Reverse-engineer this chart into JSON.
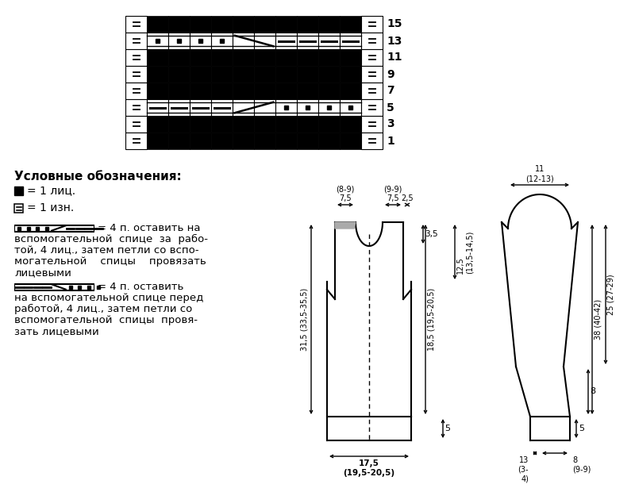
{
  "bg_color": "#ffffff",
  "grid_rows": 8,
  "grid_cols": 12,
  "row_numbers": [
    1,
    3,
    5,
    7,
    9,
    11,
    13,
    15
  ],
  "legend_title": "Условные обозначения:",
  "leg1": "■ = 1 лиц.",
  "leg2": "⊞ = 1 изн.",
  "leg3a": "= 4 п. оставить на",
  "leg3b": [
    "вспомогательной  спице  за  рабо-",
    "той, 4 лиц., затем петли со вспо-",
    "могательной    спицы    провязать",
    "лицевыми"
  ],
  "leg4a": "= 4 п. оставить",
  "leg4b": [
    "на вспомогательной спице перед",
    "работой, 4 лиц., затем петли со",
    "вспомогательной  спицы  провя-",
    "зать лицевыми"
  ],
  "front_w_label": "17,5\n(19,5-20,5)",
  "front_h_label": "31,5 (33,5-35,5)",
  "front_top_left": "(8-9)\n7,5",
  "front_top_right": "(9-9)\n7,5",
  "front_shoulder": "2,5",
  "front_neck": "3,5",
  "front_armhole": "12,5\n(13,5-14,5)",
  "front_body": "18,5 (19,5-20,5)",
  "front_hem": "5",
  "sl_cap": "11\n(12-13)",
  "sl_total": "38 (40-42)",
  "sl_upper": "25 (27-29)",
  "sl_lower": "8",
  "sl_hem": "5",
  "sl_bot_left": "13\n(3-\n4)",
  "sl_bot_right": "8\n(9-9)"
}
